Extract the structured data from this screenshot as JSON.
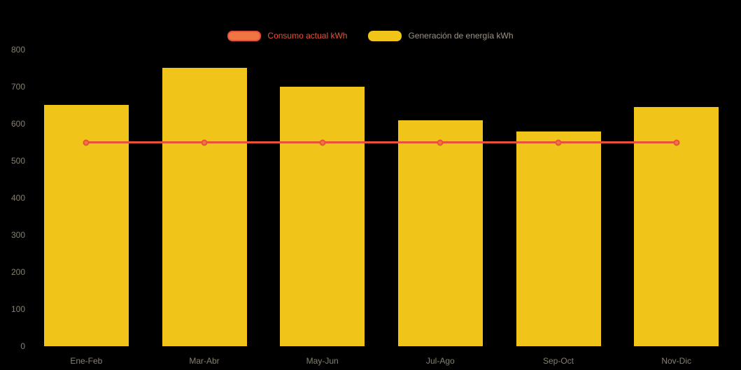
{
  "chart_data": {
    "type": "bar",
    "title": "",
    "categories": [
      "Ene-Feb",
      "Mar-Abr",
      "May-Jun",
      "Jul-Ago",
      "Sep-Oct",
      "Nov-Dic"
    ],
    "series": [
      {
        "name": "Consumo actual kWh",
        "chart_type": "line",
        "values": [
          550,
          550,
          550,
          550,
          550,
          550
        ],
        "line_color": "#e8503a",
        "fill_color": "#ef7544",
        "legend_label_color": "#e8503a"
      },
      {
        "name": "Generación de energía kWh",
        "chart_type": "bar",
        "values": [
          650,
          750,
          700,
          610,
          580,
          645
        ],
        "fill_color": "#f0c419",
        "legend_label_color": "#9c9585"
      }
    ],
    "ylim": [
      0,
      800
    ],
    "yticks": [
      0,
      100,
      200,
      300,
      400,
      500,
      600,
      700,
      800
    ],
    "xlabel": "",
    "ylabel": "",
    "grid": false,
    "legend_position": "top",
    "background": "#000000",
    "axis_tick_color": "#86806f"
  }
}
